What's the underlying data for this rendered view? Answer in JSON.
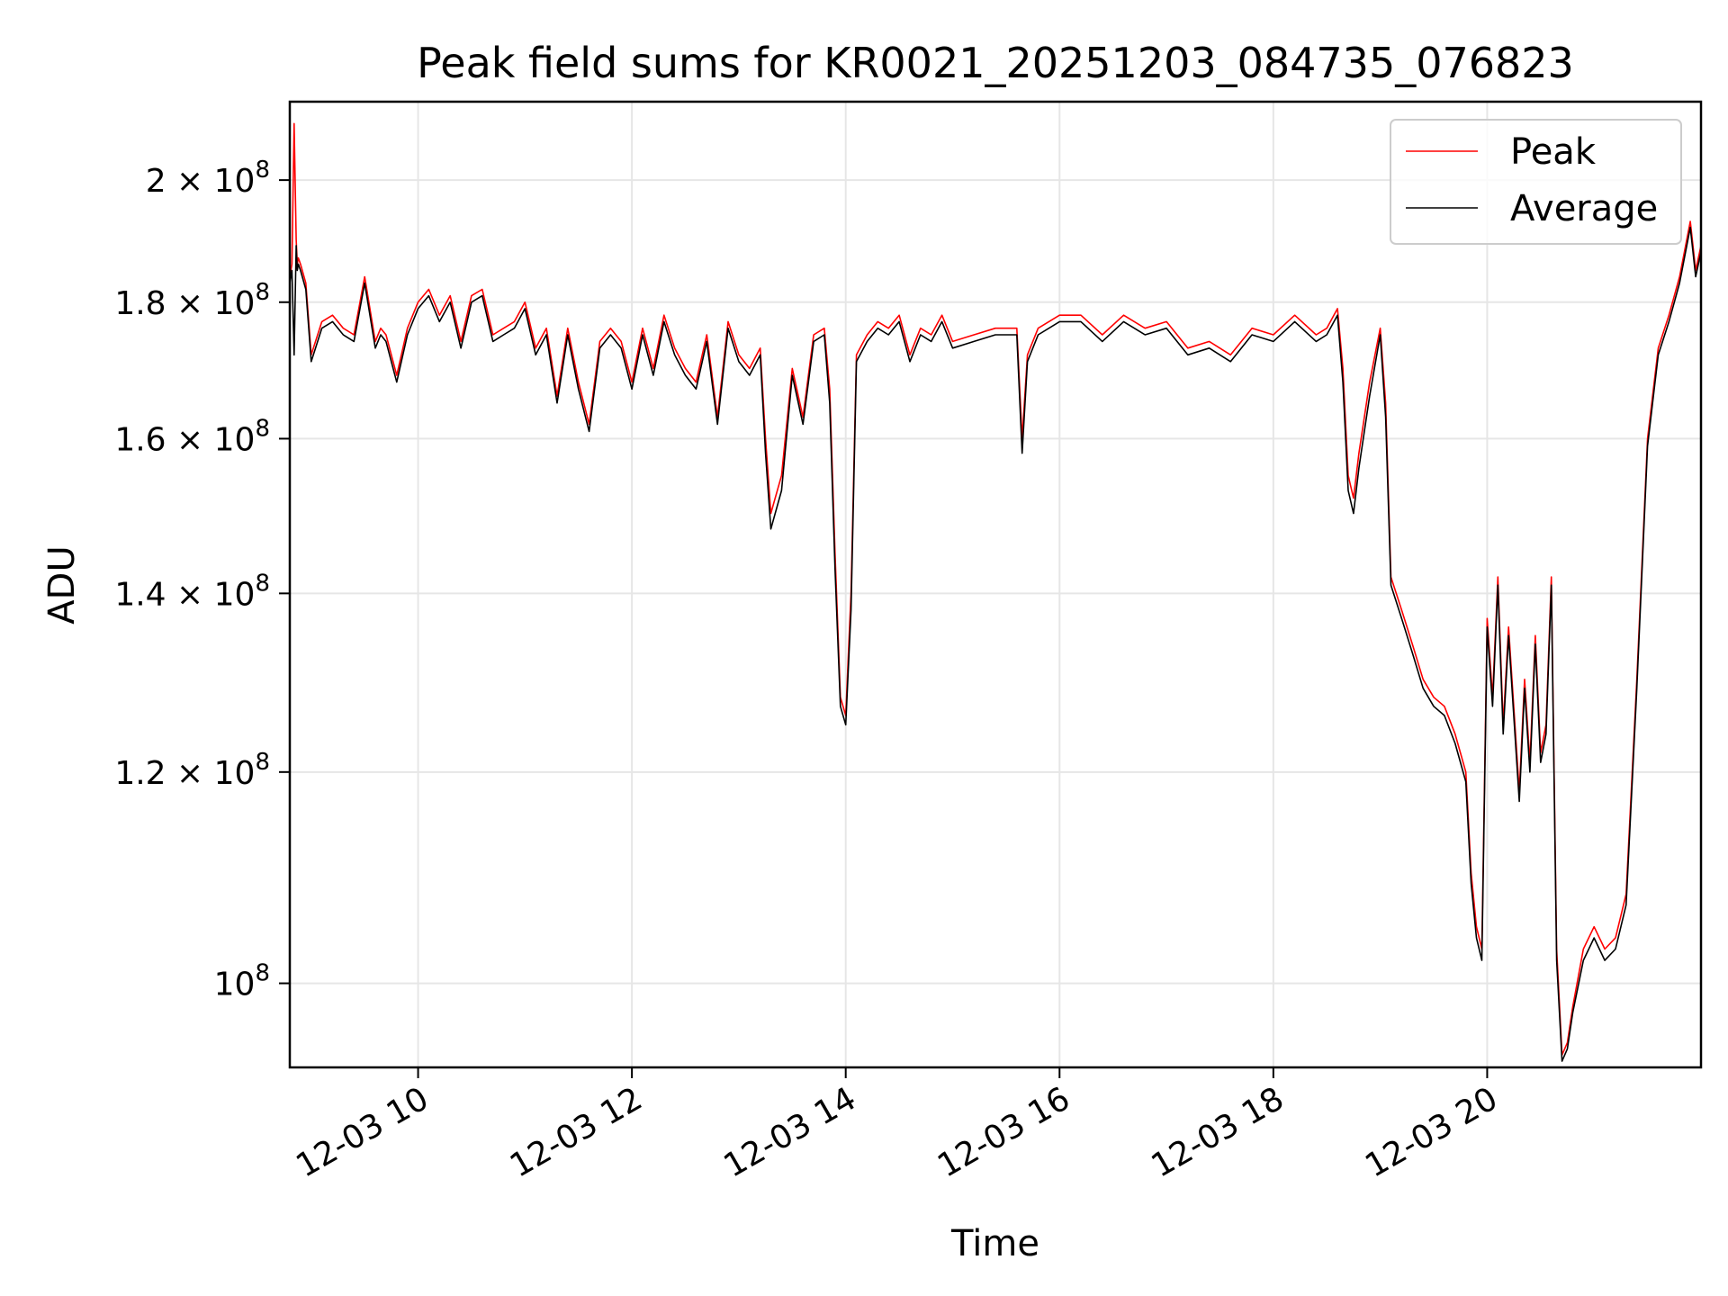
{
  "chart_data": {
    "type": "line",
    "title": "Peak field sums for KR0021_20251203_084735_076823",
    "xlabel": "Time",
    "ylabel": "ADU",
    "y_scale": "log",
    "xlim_hours": [
      8.8,
      22.0
    ],
    "ylim": [
      93000000,
      214000000
    ],
    "grid": true,
    "legend_position": "top-right",
    "x_ticks": [
      {
        "value": 10,
        "label": "12-03 10"
      },
      {
        "value": 12,
        "label": "12-03 12"
      },
      {
        "value": 14,
        "label": "12-03 14"
      },
      {
        "value": 16,
        "label": "12-03 16"
      },
      {
        "value": 18,
        "label": "12-03 18"
      },
      {
        "value": 20,
        "label": "12-03 20"
      }
    ],
    "y_ticks": [
      {
        "value": 100000000,
        "mantissa": "",
        "exponent": "8"
      },
      {
        "value": 120000000,
        "mantissa": "1.2",
        "exponent": "8"
      },
      {
        "value": 140000000,
        "mantissa": "1.4",
        "exponent": "8"
      },
      {
        "value": 160000000,
        "mantissa": "1.6",
        "exponent": "8"
      },
      {
        "value": 180000000,
        "mantissa": "1.8",
        "exponent": "8"
      },
      {
        "value": 200000000,
        "mantissa": "2",
        "exponent": "8"
      }
    ],
    "series": [
      {
        "name": "Peak",
        "color": "#ff0000",
        "x_hours": [
          8.8,
          8.82,
          8.84,
          8.86,
          8.87,
          8.88,
          8.9,
          8.95,
          9.0,
          9.1,
          9.2,
          9.3,
          9.4,
          9.5,
          9.6,
          9.65,
          9.7,
          9.8,
          9.9,
          10.0,
          10.1,
          10.2,
          10.3,
          10.4,
          10.5,
          10.6,
          10.7,
          10.8,
          10.9,
          11.0,
          11.1,
          11.2,
          11.3,
          11.4,
          11.5,
          11.6,
          11.7,
          11.8,
          11.9,
          12.0,
          12.1,
          12.2,
          12.3,
          12.4,
          12.5,
          12.6,
          12.7,
          12.8,
          12.9,
          13.0,
          13.1,
          13.2,
          13.25,
          13.3,
          13.4,
          13.5,
          13.6,
          13.7,
          13.8,
          13.85,
          13.9,
          13.95,
          14.0,
          14.05,
          14.1,
          14.2,
          14.3,
          14.4,
          14.5,
          14.6,
          14.7,
          14.8,
          14.9,
          15.0,
          15.2,
          15.4,
          15.6,
          15.65,
          15.7,
          15.8,
          16.0,
          16.2,
          16.4,
          16.6,
          16.8,
          17.0,
          17.2,
          17.4,
          17.6,
          17.8,
          18.0,
          18.2,
          18.4,
          18.5,
          18.6,
          18.65,
          18.7,
          18.75,
          18.8,
          18.9,
          19.0,
          19.05,
          19.1,
          19.2,
          19.3,
          19.4,
          19.5,
          19.6,
          19.7,
          19.75,
          19.8,
          19.85,
          19.9,
          19.95,
          20.0,
          20.05,
          20.1,
          20.15,
          20.2,
          20.3,
          20.35,
          20.4,
          20.45,
          20.5,
          20.55,
          20.6,
          20.65,
          20.7,
          20.75,
          20.8,
          20.9,
          21.0,
          21.1,
          21.2,
          21.3,
          21.4,
          21.5,
          21.6,
          21.7,
          21.8,
          21.9,
          21.95,
          22.0
        ],
        "values": [
          184000000,
          186000000,
          210000000,
          190000000,
          186000000,
          187000000,
          186000000,
          183000000,
          172000000,
          177000000,
          178000000,
          176000000,
          175000000,
          184000000,
          174000000,
          176000000,
          175000000,
          169000000,
          176000000,
          180000000,
          182000000,
          178000000,
          181000000,
          174000000,
          181000000,
          182000000,
          175000000,
          176000000,
          177000000,
          180000000,
          173000000,
          176000000,
          166000000,
          176000000,
          168000000,
          162000000,
          174000000,
          176000000,
          174000000,
          168000000,
          176000000,
          170000000,
          178000000,
          173000000,
          170000000,
          168000000,
          175000000,
          163000000,
          177000000,
          172000000,
          170000000,
          173000000,
          160000000,
          150000000,
          155000000,
          170000000,
          163000000,
          175000000,
          176000000,
          167000000,
          145000000,
          128000000,
          126000000,
          140000000,
          172000000,
          175000000,
          177000000,
          176000000,
          178000000,
          172000000,
          176000000,
          175000000,
          178000000,
          174000000,
          175000000,
          176000000,
          176000000,
          160000000,
          172000000,
          176000000,
          178000000,
          178000000,
          175000000,
          178000000,
          176000000,
          177000000,
          173000000,
          174000000,
          172000000,
          176000000,
          175000000,
          178000000,
          175000000,
          176000000,
          179000000,
          170000000,
          155000000,
          152000000,
          158000000,
          168000000,
          176000000,
          165000000,
          142000000,
          138000000,
          134000000,
          130000000,
          128000000,
          127000000,
          124000000,
          122000000,
          120000000,
          110000000,
          105000000,
          103000000,
          137000000,
          128000000,
          142000000,
          125000000,
          136000000,
          118000000,
          130000000,
          121000000,
          135000000,
          122000000,
          125000000,
          142000000,
          103000000,
          94000000,
          95000000,
          98000000,
          103000000,
          105000000,
          103000000,
          104000000,
          108000000,
          130000000,
          160000000,
          173000000,
          178000000,
          184000000,
          193000000,
          185000000,
          189000000
        ]
      },
      {
        "name": "Average",
        "color": "#000000",
        "x_hours": [
          8.8,
          8.82,
          8.84,
          8.86,
          8.87,
          8.88,
          8.9,
          8.95,
          9.0,
          9.1,
          9.2,
          9.3,
          9.4,
          9.5,
          9.6,
          9.65,
          9.7,
          9.8,
          9.9,
          10.0,
          10.1,
          10.2,
          10.3,
          10.4,
          10.5,
          10.6,
          10.7,
          10.8,
          10.9,
          11.0,
          11.1,
          11.2,
          11.3,
          11.4,
          11.5,
          11.6,
          11.7,
          11.8,
          11.9,
          12.0,
          12.1,
          12.2,
          12.3,
          12.4,
          12.5,
          12.6,
          12.7,
          12.8,
          12.9,
          13.0,
          13.1,
          13.2,
          13.25,
          13.3,
          13.4,
          13.5,
          13.6,
          13.7,
          13.8,
          13.85,
          13.9,
          13.95,
          14.0,
          14.05,
          14.1,
          14.2,
          14.3,
          14.4,
          14.5,
          14.6,
          14.7,
          14.8,
          14.9,
          15.0,
          15.2,
          15.4,
          15.6,
          15.65,
          15.7,
          15.8,
          16.0,
          16.2,
          16.4,
          16.6,
          16.8,
          17.0,
          17.2,
          17.4,
          17.6,
          17.8,
          18.0,
          18.2,
          18.4,
          18.5,
          18.6,
          18.65,
          18.7,
          18.75,
          18.8,
          18.9,
          19.0,
          19.05,
          19.1,
          19.2,
          19.3,
          19.4,
          19.5,
          19.6,
          19.7,
          19.75,
          19.8,
          19.85,
          19.9,
          19.95,
          20.0,
          20.05,
          20.1,
          20.15,
          20.2,
          20.3,
          20.35,
          20.4,
          20.45,
          20.5,
          20.55,
          20.6,
          20.65,
          20.7,
          20.75,
          20.8,
          20.9,
          21.0,
          21.1,
          21.2,
          21.3,
          21.4,
          21.5,
          21.6,
          21.7,
          21.8,
          21.9,
          21.95,
          22.0
        ],
        "values": [
          183000000,
          185000000,
          172000000,
          189000000,
          185000000,
          186000000,
          185000000,
          182000000,
          171000000,
          176000000,
          177000000,
          175000000,
          174000000,
          183000000,
          173000000,
          175000000,
          174000000,
          168000000,
          175000000,
          179000000,
          181000000,
          177000000,
          180000000,
          173000000,
          180000000,
          181000000,
          174000000,
          175000000,
          176000000,
          179000000,
          172000000,
          175000000,
          165000000,
          175000000,
          167000000,
          161000000,
          173000000,
          175000000,
          173000000,
          167000000,
          175000000,
          169000000,
          177000000,
          172000000,
          169000000,
          167000000,
          174000000,
          162000000,
          176000000,
          171000000,
          169000000,
          172000000,
          158000000,
          148000000,
          153000000,
          169000000,
          162000000,
          174000000,
          175000000,
          165000000,
          143000000,
          127000000,
          125000000,
          138000000,
          171000000,
          174000000,
          176000000,
          175000000,
          177000000,
          171000000,
          175000000,
          174000000,
          177000000,
          173000000,
          174000000,
          175000000,
          175000000,
          158000000,
          171000000,
          175000000,
          177000000,
          177000000,
          174000000,
          177000000,
          175000000,
          176000000,
          172000000,
          173000000,
          171000000,
          175000000,
          174000000,
          177000000,
          174000000,
          175000000,
          178000000,
          168000000,
          153000000,
          150000000,
          156000000,
          166000000,
          175000000,
          163000000,
          141000000,
          137000000,
          133000000,
          129000000,
          127000000,
          126000000,
          123000000,
          121000000,
          119000000,
          109000000,
          104000000,
          102000000,
          136000000,
          127000000,
          141000000,
          124000000,
          135000000,
          117000000,
          129000000,
          120000000,
          134000000,
          121000000,
          124000000,
          141000000,
          102000000,
          93500000,
          94500000,
          97500000,
          102000000,
          104000000,
          102000000,
          103000000,
          107000000,
          129000000,
          159000000,
          172000000,
          177000000,
          183000000,
          192000000,
          184000000,
          188000000
        ]
      }
    ]
  }
}
